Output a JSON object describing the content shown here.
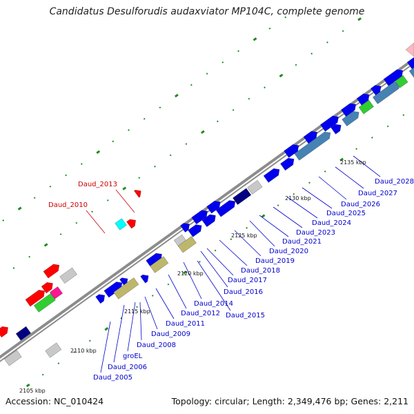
{
  "title": "Candidatus Desulforudis audaxviator MP104C, complete genome",
  "footer": {
    "accession": "Accession: NC_010424",
    "summary": "Topology: circular; Length: 2,349,476 bp; Genes: 2,211"
  },
  "colors": {
    "backbone": "#8c8c8c",
    "cds_forward": "#0000ee",
    "cds_forward_alt": "#4682b4",
    "cds_reverse": "#ff0000",
    "rrna": "#bdb76b",
    "gray": "#c8c8c8",
    "green": "#32cd32",
    "magenta": "#ff1493",
    "cyan": "#00ffff",
    "navy": "#000080",
    "label_blue": "#0000cd",
    "label_red": "#cc0000",
    "tick_green": "#228b22"
  },
  "scale_ticks": [
    {
      "label": "2105 kbp"
    },
    {
      "label": "2110 kbp"
    },
    {
      "label": "2115 kbp"
    },
    {
      "label": "2120 kbp"
    },
    {
      "label": "2125 kbp"
    },
    {
      "label": "2130 kbp"
    },
    {
      "label": "2135 kbp"
    }
  ],
  "gene_labels": {
    "blue": [
      {
        "label": "Daud_2005"
      },
      {
        "label": "Daud_2006"
      },
      {
        "label": "groEL"
      },
      {
        "label": "Daud_2008"
      },
      {
        "label": "Daud_2009"
      },
      {
        "label": "Daud_2011"
      },
      {
        "label": "Daud_2012"
      },
      {
        "label": "Daud_2014"
      },
      {
        "label": "Daud_2015"
      },
      {
        "label": "Daud_2016"
      },
      {
        "label": "Daud_2017"
      },
      {
        "label": "Daud_2018"
      },
      {
        "label": "Daud_2019"
      },
      {
        "label": "Daud_2020"
      },
      {
        "label": "Daud_2021"
      },
      {
        "label": "Daud_2023"
      },
      {
        "label": "Daud_2024"
      },
      {
        "label": "Daud_2025"
      },
      {
        "label": "Daud_2026"
      },
      {
        "label": "Daud_2027"
      },
      {
        "label": "Daud_2028"
      }
    ],
    "red": [
      {
        "label": "Daud_2010"
      },
      {
        "label": "Daud_2013"
      }
    ]
  }
}
